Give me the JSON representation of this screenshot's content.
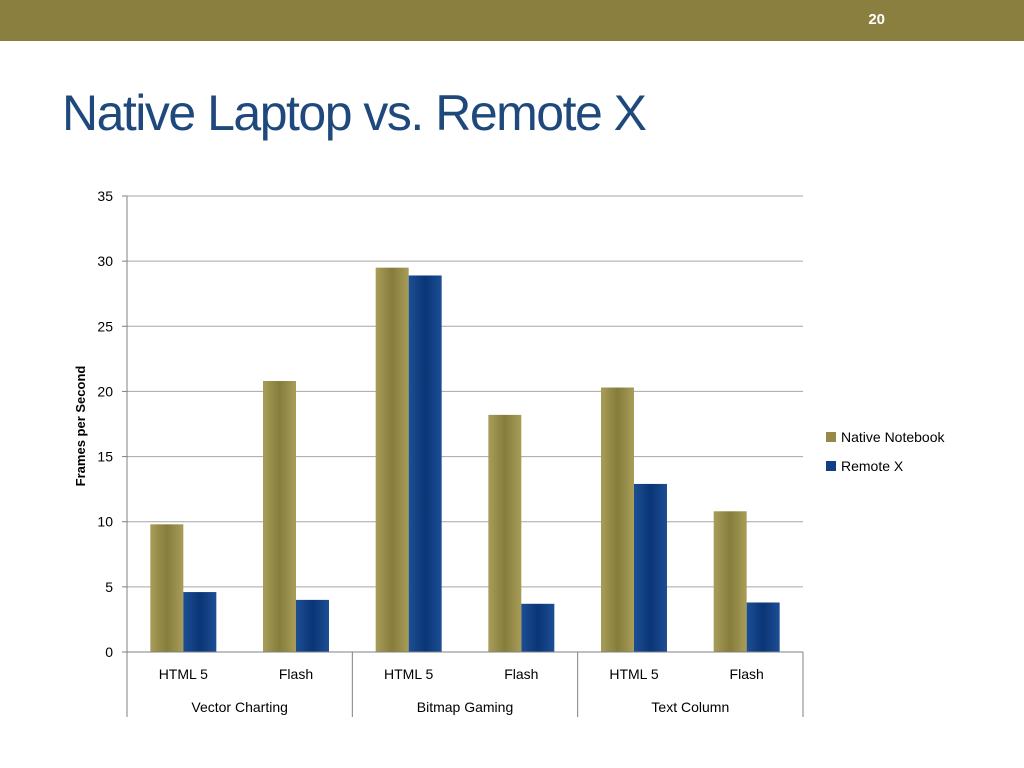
{
  "slide": {
    "number": "20",
    "title": "Native Laptop vs. Remote X"
  },
  "colors": {
    "topbar": "#8a7f3f",
    "title": "#1f497d",
    "native": "#948a45",
    "remote": "#0f3f85",
    "grid": "#a6a6a6"
  },
  "chart_data": {
    "type": "bar",
    "ylabel": "Frames per Second",
    "ylim": [
      0,
      35
    ],
    "yticks": [
      0,
      5,
      10,
      15,
      20,
      25,
      30,
      35
    ],
    "grid": true,
    "legend_position": "right",
    "groups": [
      {
        "label": "Vector Charting",
        "categories": [
          "HTML 5",
          "Flash"
        ]
      },
      {
        "label": "Bitmap Gaming",
        "categories": [
          "HTML 5",
          "Flash"
        ]
      },
      {
        "label": "Text Column",
        "categories": [
          "HTML 5",
          "Flash"
        ]
      }
    ],
    "categories": [
      "HTML 5",
      "Flash",
      "HTML 5",
      "Flash",
      "HTML 5",
      "Flash"
    ],
    "series": [
      {
        "name": "Native Notebook",
        "values": [
          9.8,
          20.8,
          29.5,
          18.2,
          20.3,
          10.8
        ]
      },
      {
        "name": "Remote X",
        "values": [
          4.6,
          4.0,
          28.9,
          3.7,
          12.9,
          3.8
        ]
      }
    ]
  }
}
